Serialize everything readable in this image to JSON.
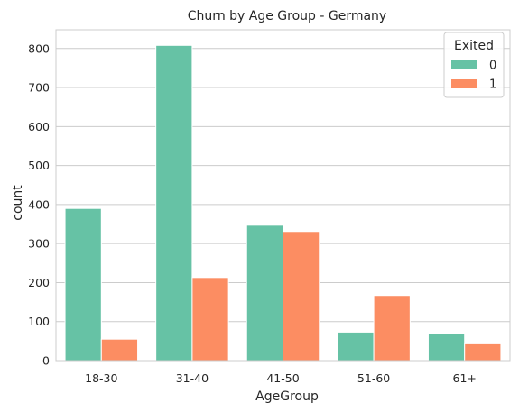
{
  "chart_data": {
    "type": "bar",
    "title": "Churn by Age Group - Germany",
    "xlabel": "AgeGroup",
    "ylabel": "count",
    "categories": [
      "18-30",
      "31-40",
      "41-50",
      "51-60",
      "61+"
    ],
    "series": [
      {
        "name": "0",
        "values": [
          390,
          808,
          347,
          73,
          69
        ],
        "color": "#66c2a5"
      },
      {
        "name": "1",
        "values": [
          55,
          213,
          331,
          167,
          43
        ],
        "color": "#fc8d62"
      }
    ],
    "yticks": [
      0,
      100,
      200,
      300,
      400,
      500,
      600,
      700,
      800
    ],
    "ylim": [
      0,
      848
    ],
    "grid": "y",
    "legend": {
      "title": "Exited",
      "placement": "top-right"
    }
  }
}
